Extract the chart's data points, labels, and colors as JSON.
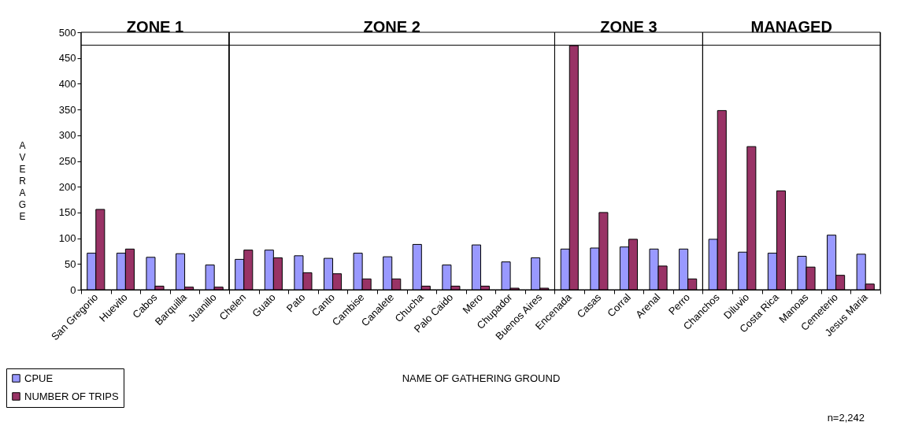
{
  "chart_data": {
    "type": "bar",
    "xlabel": "NAME OF GATHERING GROUND",
    "ylabel": "AVERAGE",
    "categories": [
      "San Gregorio",
      "Huevito",
      "Cabos",
      "Barquilla",
      "Juanillo",
      "Chelen",
      "Guato",
      "Pato",
      "Canto",
      "Cambise",
      "Canalete",
      "Chucha",
      "Palo Caido",
      "Mero",
      "Chupador",
      "Buenos Aires",
      "Encenada",
      "Casas",
      "Corral",
      "Arenal",
      "Perro",
      "Chanchos",
      "Diluvio",
      "Costa Rica",
      "Manoas",
      "Cemeterio",
      "Jesus Maria"
    ],
    "series": [
      {
        "name": "CPUE",
        "color": "#9999ff",
        "values": [
          71,
          71,
          63,
          70,
          48,
          59,
          77,
          66,
          61,
          71,
          64,
          88,
          48,
          87,
          54,
          62,
          79,
          81,
          83,
          79,
          79,
          98,
          73,
          71,
          65,
          106,
          69
        ]
      },
      {
        "name": "NUMBER OF TRIPS",
        "color": "#993366",
        "values": [
          156,
          79,
          7,
          5,
          5,
          77,
          62,
          33,
          31,
          21,
          21,
          7,
          7,
          7,
          3,
          3,
          474,
          150,
          98,
          46,
          21,
          348,
          278,
          192,
          44,
          28,
          11
        ]
      }
    ],
    "ylim": [
      0,
      500
    ],
    "yticks": [
      0,
      50,
      100,
      150,
      200,
      250,
      300,
      350,
      400,
      450,
      500
    ],
    "legend": "bottom left",
    "bands": [
      {
        "axis": "x",
        "from": "San Gregorio",
        "to": "Juanillo",
        "label": "ZONE 1",
        "color": "#ffffff"
      },
      {
        "axis": "x",
        "from": "Chelen",
        "to": "Buenos Aires",
        "label": "ZONE 2",
        "color": "#ffffff"
      },
      {
        "axis": "x",
        "from": "Encenada",
        "to": "Perro",
        "label": "ZONE 3",
        "color": "#ffffff"
      },
      {
        "axis": "x",
        "from": "Chanchos",
        "to": "Jesus Maria",
        "label": "MANAGED",
        "color": "#ffffff"
      }
    ],
    "ref_lines": [
      {
        "axis": "y",
        "value": 475
      }
    ],
    "annotations": [
      "n=2,242"
    ]
  }
}
